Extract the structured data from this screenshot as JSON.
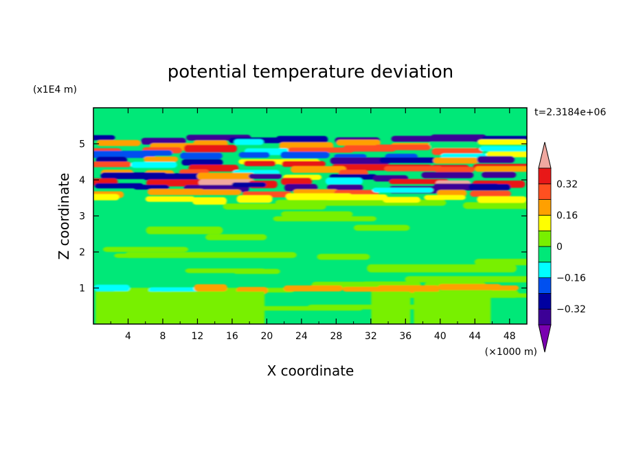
{
  "chart_data": {
    "type": "heatmap",
    "title": "potential temperature deviation",
    "xlabel": "X coordinate",
    "ylabel": "Z coordinate",
    "x_unit": "(×1000 m)",
    "y_unit": "(x1E4 m)",
    "time_label": "t=2.3184e+06",
    "xlim": [
      0,
      50
    ],
    "ylim": [
      0,
      6
    ],
    "x_ticks": [
      4,
      8,
      12,
      16,
      20,
      24,
      28,
      32,
      36,
      40,
      44,
      48
    ],
    "y_ticks": [
      1,
      2,
      3,
      4,
      5
    ],
    "colorbar": {
      "levels": [
        -0.4,
        -0.32,
        -0.24,
        -0.16,
        -0.08,
        0,
        0.08,
        0.16,
        0.24,
        0.32,
        0.4
      ],
      "tick_labels": [
        "0.32",
        "0.16",
        "0",
        "−0.16",
        "−0.32"
      ],
      "tick_values": [
        0.32,
        0.16,
        0,
        -0.16,
        -0.32
      ],
      "under_color": "#7a00b0",
      "over_color": "#f0a8a0",
      "colors": [
        "#3c0096",
        "#0000a0",
        "#0050f0",
        "#00ffff",
        "#00e878",
        "#78f000",
        "#ffff00",
        "#ffa000",
        "#ff5020",
        "#e81818"
      ]
    },
    "bands": [
      {
        "z": 5.15,
        "value": -0.36
      },
      {
        "z": 5.0,
        "value": 0.2
      },
      {
        "z": 4.85,
        "value": 0.3
      },
      {
        "z": 4.7,
        "value": -0.2
      },
      {
        "z": 4.55,
        "value": -0.36
      },
      {
        "z": 4.4,
        "value": 0.36
      },
      {
        "z": 4.25,
        "value": 0.28
      },
      {
        "z": 4.1,
        "value": -0.36
      },
      {
        "z": 3.95,
        "value": 0.4
      },
      {
        "z": 3.8,
        "value": -0.36
      },
      {
        "z": 3.65,
        "value": 0.28
      },
      {
        "z": 3.5,
        "value": 0.12
      },
      {
        "z": 1.0,
        "value": 0.2
      }
    ]
  }
}
